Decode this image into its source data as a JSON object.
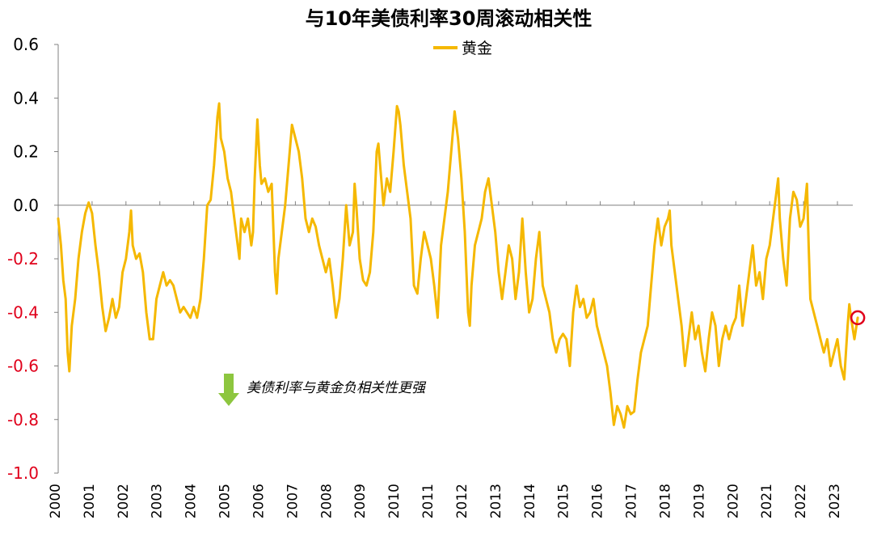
{
  "chart_data": {
    "type": "line",
    "title": "与10年美债利率30周滚动相关性",
    "xlabel": "",
    "ylabel": "",
    "ylim": [
      -1.0,
      0.6
    ],
    "xlim": [
      2000,
      2023.6
    ],
    "grid": false,
    "legend_position": "top-center",
    "y_ticks": [
      "0.6",
      "0.4",
      "0.2",
      "0.0",
      "-0.2",
      "-0.4",
      "-0.6",
      "-0.8",
      "-1.0"
    ],
    "x_ticks": [
      "2000",
      "2001",
      "2002",
      "2003",
      "2004",
      "2005",
      "2006",
      "2007",
      "2008",
      "2009",
      "2010",
      "2011",
      "2012",
      "2013",
      "2014",
      "2015",
      "2016",
      "2017",
      "2018",
      "2019",
      "2020",
      "2021",
      "2022",
      "2023"
    ],
    "annotation": "美债利率与黄金负相关性更强",
    "series": [
      {
        "name": "黄金",
        "color": "#F5B800",
        "points": [
          [
            2000.0,
            -0.05
          ],
          [
            2000.08,
            -0.15
          ],
          [
            2000.15,
            -0.28
          ],
          [
            2000.22,
            -0.35
          ],
          [
            2000.28,
            -0.55
          ],
          [
            2000.33,
            -0.62
          ],
          [
            2000.4,
            -0.45
          ],
          [
            2000.5,
            -0.35
          ],
          [
            2000.6,
            -0.2
          ],
          [
            2000.7,
            -0.1
          ],
          [
            2000.8,
            -0.03
          ],
          [
            2000.9,
            0.01
          ],
          [
            2001.0,
            -0.03
          ],
          [
            2001.1,
            -0.15
          ],
          [
            2001.2,
            -0.25
          ],
          [
            2001.3,
            -0.38
          ],
          [
            2001.4,
            -0.47
          ],
          [
            2001.5,
            -0.42
          ],
          [
            2001.6,
            -0.35
          ],
          [
            2001.7,
            -0.42
          ],
          [
            2001.8,
            -0.38
          ],
          [
            2001.9,
            -0.25
          ],
          [
            2002.0,
            -0.2
          ],
          [
            2002.1,
            -0.1
          ],
          [
            2002.15,
            -0.02
          ],
          [
            2002.2,
            -0.15
          ],
          [
            2002.3,
            -0.2
          ],
          [
            2002.4,
            -0.18
          ],
          [
            2002.5,
            -0.25
          ],
          [
            2002.6,
            -0.4
          ],
          [
            2002.7,
            -0.5
          ],
          [
            2002.8,
            -0.5
          ],
          [
            2002.9,
            -0.35
          ],
          [
            2003.0,
            -0.3
          ],
          [
            2003.1,
            -0.25
          ],
          [
            2003.2,
            -0.3
          ],
          [
            2003.3,
            -0.28
          ],
          [
            2003.4,
            -0.3
          ],
          [
            2003.5,
            -0.35
          ],
          [
            2003.6,
            -0.4
          ],
          [
            2003.7,
            -0.38
          ],
          [
            2003.8,
            -0.4
          ],
          [
            2003.9,
            -0.42
          ],
          [
            2004.0,
            -0.38
          ],
          [
            2004.1,
            -0.42
          ],
          [
            2004.2,
            -0.35
          ],
          [
            2004.3,
            -0.2
          ],
          [
            2004.4,
            0.0
          ],
          [
            2004.5,
            0.02
          ],
          [
            2004.6,
            0.15
          ],
          [
            2004.7,
            0.33
          ],
          [
            2004.75,
            0.38
          ],
          [
            2004.8,
            0.25
          ],
          [
            2004.9,
            0.2
          ],
          [
            2005.0,
            0.1
          ],
          [
            2005.1,
            0.05
          ],
          [
            2005.2,
            -0.05
          ],
          [
            2005.3,
            -0.15
          ],
          [
            2005.35,
            -0.2
          ],
          [
            2005.4,
            -0.05
          ],
          [
            2005.5,
            -0.1
          ],
          [
            2005.6,
            -0.05
          ],
          [
            2005.7,
            -0.15
          ],
          [
            2005.75,
            -0.1
          ],
          [
            2005.8,
            0.1
          ],
          [
            2005.88,
            0.32
          ],
          [
            2005.95,
            0.15
          ],
          [
            2006.0,
            0.08
          ],
          [
            2006.1,
            0.1
          ],
          [
            2006.2,
            0.05
          ],
          [
            2006.3,
            0.08
          ],
          [
            2006.4,
            -0.25
          ],
          [
            2006.45,
            -0.33
          ],
          [
            2006.5,
            -0.2
          ],
          [
            2006.6,
            -0.1
          ],
          [
            2006.7,
            0.0
          ],
          [
            2006.8,
            0.15
          ],
          [
            2006.9,
            0.3
          ],
          [
            2007.0,
            0.25
          ],
          [
            2007.1,
            0.2
          ],
          [
            2007.2,
            0.1
          ],
          [
            2007.3,
            -0.05
          ],
          [
            2007.4,
            -0.1
          ],
          [
            2007.5,
            -0.05
          ],
          [
            2007.6,
            -0.08
          ],
          [
            2007.7,
            -0.15
          ],
          [
            2007.8,
            -0.2
          ],
          [
            2007.9,
            -0.25
          ],
          [
            2008.0,
            -0.2
          ],
          [
            2008.1,
            -0.3
          ],
          [
            2008.2,
            -0.42
          ],
          [
            2008.3,
            -0.35
          ],
          [
            2008.4,
            -0.2
          ],
          [
            2008.5,
            0.0
          ],
          [
            2008.6,
            -0.15
          ],
          [
            2008.7,
            -0.1
          ],
          [
            2008.75,
            0.08
          ],
          [
            2008.8,
            0.0
          ],
          [
            2008.9,
            -0.2
          ],
          [
            2009.0,
            -0.28
          ],
          [
            2009.1,
            -0.3
          ],
          [
            2009.2,
            -0.25
          ],
          [
            2009.3,
            -0.1
          ],
          [
            2009.35,
            0.05
          ],
          [
            2009.4,
            0.2
          ],
          [
            2009.45,
            0.23
          ],
          [
            2009.5,
            0.15
          ],
          [
            2009.6,
            0.0
          ],
          [
            2009.7,
            0.1
          ],
          [
            2009.8,
            0.05
          ],
          [
            2009.9,
            0.2
          ],
          [
            2010.0,
            0.37
          ],
          [
            2010.05,
            0.35
          ],
          [
            2010.1,
            0.3
          ],
          [
            2010.2,
            0.15
          ],
          [
            2010.3,
            0.05
          ],
          [
            2010.4,
            -0.05
          ],
          [
            2010.5,
            -0.3
          ],
          [
            2010.6,
            -0.33
          ],
          [
            2010.7,
            -0.2
          ],
          [
            2010.8,
            -0.1
          ],
          [
            2010.9,
            -0.15
          ],
          [
            2011.0,
            -0.2
          ],
          [
            2011.1,
            -0.3
          ],
          [
            2011.2,
            -0.42
          ],
          [
            2011.3,
            -0.15
          ],
          [
            2011.4,
            -0.05
          ],
          [
            2011.5,
            0.05
          ],
          [
            2011.6,
            0.2
          ],
          [
            2011.7,
            0.35
          ],
          [
            2011.8,
            0.25
          ],
          [
            2011.9,
            0.1
          ],
          [
            2012.0,
            -0.1
          ],
          [
            2012.1,
            -0.4
          ],
          [
            2012.15,
            -0.45
          ],
          [
            2012.2,
            -0.3
          ],
          [
            2012.3,
            -0.15
          ],
          [
            2012.4,
            -0.1
          ],
          [
            2012.5,
            -0.05
          ],
          [
            2012.6,
            0.05
          ],
          [
            2012.7,
            0.1
          ],
          [
            2012.8,
            0.0
          ],
          [
            2012.9,
            -0.1
          ],
          [
            2013.0,
            -0.25
          ],
          [
            2013.1,
            -0.35
          ],
          [
            2013.2,
            -0.25
          ],
          [
            2013.3,
            -0.15
          ],
          [
            2013.4,
            -0.2
          ],
          [
            2013.5,
            -0.35
          ],
          [
            2013.6,
            -0.25
          ],
          [
            2013.7,
            -0.05
          ],
          [
            2013.8,
            -0.25
          ],
          [
            2013.9,
            -0.4
          ],
          [
            2014.0,
            -0.35
          ],
          [
            2014.1,
            -0.2
          ],
          [
            2014.2,
            -0.1
          ],
          [
            2014.3,
            -0.3
          ],
          [
            2014.4,
            -0.35
          ],
          [
            2014.5,
            -0.4
          ],
          [
            2014.6,
            -0.5
          ],
          [
            2014.7,
            -0.55
          ],
          [
            2014.8,
            -0.5
          ],
          [
            2014.9,
            -0.48
          ],
          [
            2015.0,
            -0.5
          ],
          [
            2015.1,
            -0.6
          ],
          [
            2015.2,
            -0.4
          ],
          [
            2015.3,
            -0.3
          ],
          [
            2015.4,
            -0.38
          ],
          [
            2015.5,
            -0.35
          ],
          [
            2015.6,
            -0.42
          ],
          [
            2015.7,
            -0.4
          ],
          [
            2015.8,
            -0.35
          ],
          [
            2015.9,
            -0.45
          ],
          [
            2016.0,
            -0.5
          ],
          [
            2016.1,
            -0.55
          ],
          [
            2016.2,
            -0.6
          ],
          [
            2016.3,
            -0.7
          ],
          [
            2016.4,
            -0.82
          ],
          [
            2016.5,
            -0.75
          ],
          [
            2016.6,
            -0.78
          ],
          [
            2016.7,
            -0.83
          ],
          [
            2016.8,
            -0.75
          ],
          [
            2016.9,
            -0.78
          ],
          [
            2017.0,
            -0.77
          ],
          [
            2017.1,
            -0.65
          ],
          [
            2017.2,
            -0.55
          ],
          [
            2017.3,
            -0.5
          ],
          [
            2017.4,
            -0.45
          ],
          [
            2017.5,
            -0.3
          ],
          [
            2017.6,
            -0.15
          ],
          [
            2017.7,
            -0.05
          ],
          [
            2017.8,
            -0.15
          ],
          [
            2017.9,
            -0.08
          ],
          [
            2018.0,
            -0.05
          ],
          [
            2018.05,
            -0.02
          ],
          [
            2018.1,
            -0.15
          ],
          [
            2018.2,
            -0.25
          ],
          [
            2018.3,
            -0.35
          ],
          [
            2018.4,
            -0.45
          ],
          [
            2018.5,
            -0.6
          ],
          [
            2018.6,
            -0.5
          ],
          [
            2018.7,
            -0.4
          ],
          [
            2018.8,
            -0.5
          ],
          [
            2018.9,
            -0.45
          ],
          [
            2019.0,
            -0.55
          ],
          [
            2019.1,
            -0.62
          ],
          [
            2019.2,
            -0.5
          ],
          [
            2019.3,
            -0.4
          ],
          [
            2019.4,
            -0.45
          ],
          [
            2019.5,
            -0.6
          ],
          [
            2019.6,
            -0.5
          ],
          [
            2019.7,
            -0.45
          ],
          [
            2019.8,
            -0.5
          ],
          [
            2019.9,
            -0.45
          ],
          [
            2020.0,
            -0.42
          ],
          [
            2020.1,
            -0.3
          ],
          [
            2020.2,
            -0.45
          ],
          [
            2020.3,
            -0.35
          ],
          [
            2020.4,
            -0.25
          ],
          [
            2020.5,
            -0.15
          ],
          [
            2020.6,
            -0.3
          ],
          [
            2020.7,
            -0.25
          ],
          [
            2020.8,
            -0.35
          ],
          [
            2020.9,
            -0.2
          ],
          [
            2021.0,
            -0.15
          ],
          [
            2021.1,
            -0.05
          ],
          [
            2021.2,
            0.05
          ],
          [
            2021.25,
            0.1
          ],
          [
            2021.3,
            -0.05
          ],
          [
            2021.4,
            -0.2
          ],
          [
            2021.5,
            -0.3
          ],
          [
            2021.6,
            -0.05
          ],
          [
            2021.7,
            0.05
          ],
          [
            2021.8,
            0.02
          ],
          [
            2021.9,
            -0.08
          ],
          [
            2022.0,
            -0.05
          ],
          [
            2022.1,
            0.08
          ],
          [
            2022.15,
            -0.15
          ],
          [
            2022.2,
            -0.35
          ],
          [
            2022.3,
            -0.4
          ],
          [
            2022.4,
            -0.45
          ],
          [
            2022.5,
            -0.5
          ],
          [
            2022.6,
            -0.55
          ],
          [
            2022.7,
            -0.5
          ],
          [
            2022.8,
            -0.6
          ],
          [
            2022.9,
            -0.55
          ],
          [
            2023.0,
            -0.5
          ],
          [
            2023.1,
            -0.6
          ],
          [
            2023.2,
            -0.65
          ],
          [
            2023.3,
            -0.45
          ],
          [
            2023.35,
            -0.37
          ],
          [
            2023.4,
            -0.42
          ],
          [
            2023.5,
            -0.5
          ],
          [
            2023.6,
            -0.42
          ]
        ]
      }
    ],
    "highlight_point": [
      2023.6,
      -0.42
    ],
    "highlight_color": "#E0001B",
    "positive_label_color": "#000000",
    "negative_label_color": "#E0001B",
    "annotation_arrow_color": "#8DC63F"
  }
}
